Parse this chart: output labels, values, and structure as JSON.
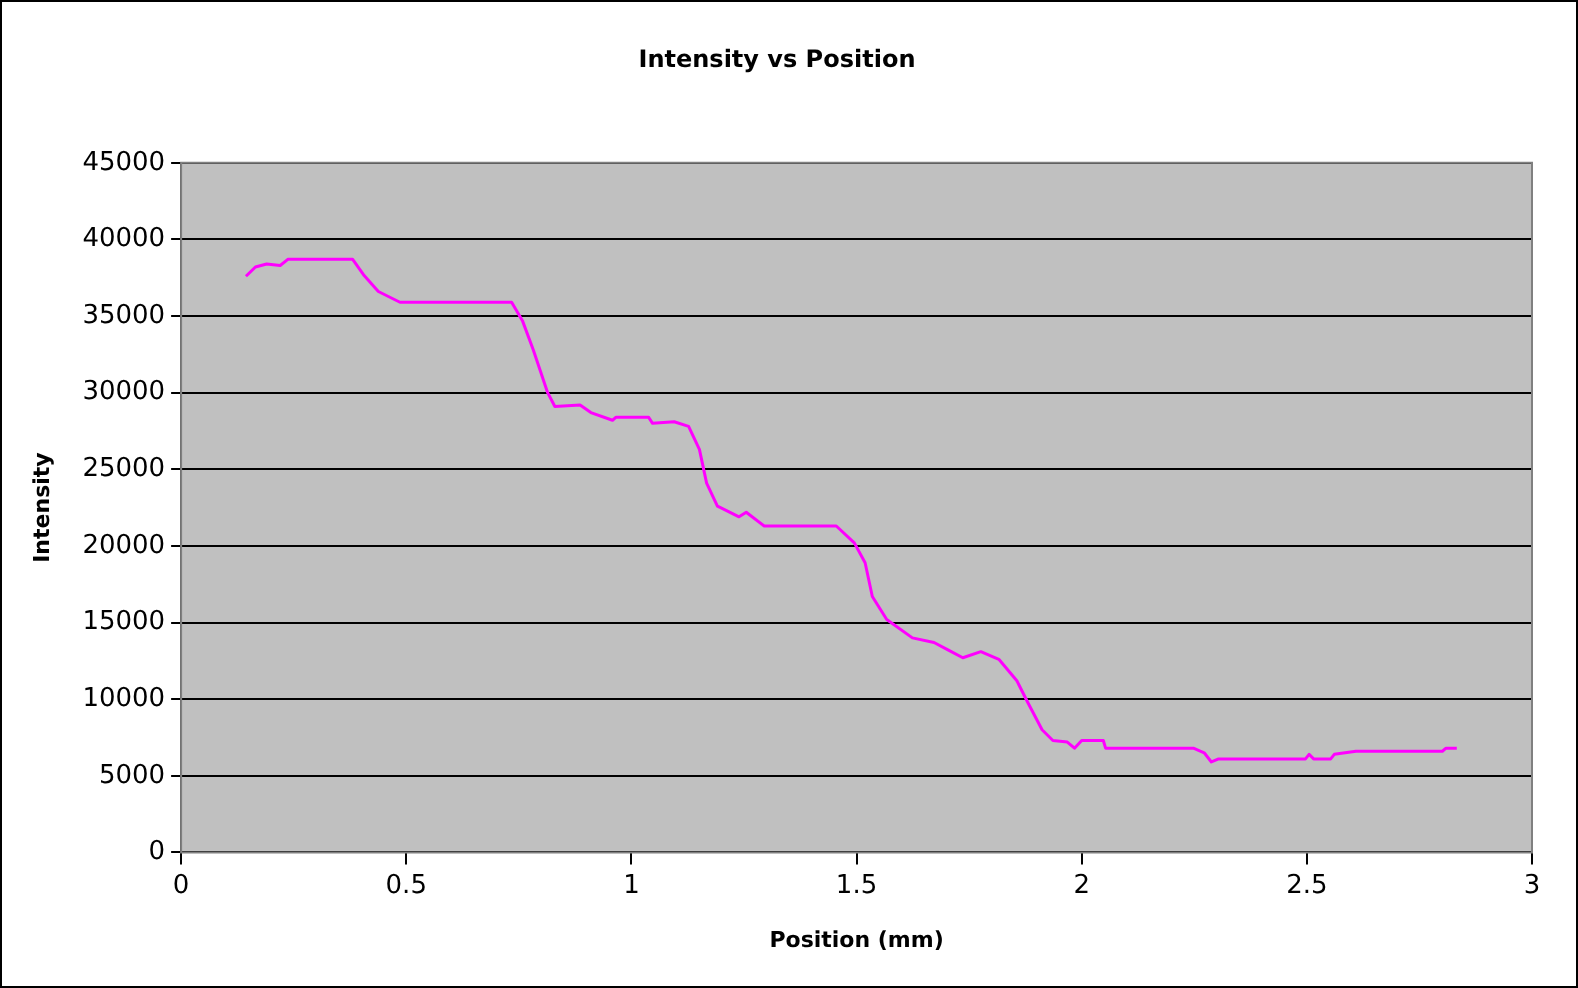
{
  "chart_data": {
    "type": "line",
    "title": "Intensity vs Position",
    "xlabel": "Position (mm)",
    "ylabel": "Intensity",
    "x": [
      0.144,
      0.165,
      0.19,
      0.22,
      0.237,
      0.381,
      0.405,
      0.438,
      0.486,
      0.734,
      0.758,
      0.782,
      0.814,
      0.83,
      0.886,
      0.91,
      0.958,
      0.966,
      1.038,
      1.047,
      1.095,
      1.127,
      1.151,
      1.167,
      1.191,
      1.239,
      1.255,
      1.295,
      1.455,
      1.495,
      1.519,
      1.535,
      1.567,
      1.624,
      1.672,
      1.704,
      1.736,
      1.776,
      1.816,
      1.856,
      1.88,
      1.912,
      1.936,
      1.968,
      1.984,
      2.0,
      2.048,
      2.053,
      2.248,
      2.272,
      2.288,
      2.304,
      2.497,
      2.505,
      2.515,
      2.553,
      2.561,
      2.609,
      2.801,
      2.809,
      2.833
    ],
    "series": [
      {
        "color": "#ff00ff",
        "values": [
          37600,
          38200,
          38400,
          38300,
          38700,
          38700,
          37700,
          36600,
          35900,
          35900,
          34700,
          32800,
          30000,
          29100,
          29200,
          28700,
          28200,
          28400,
          28400,
          28000,
          28100,
          27800,
          26300,
          24100,
          22600,
          21900,
          22200,
          21300,
          21300,
          20200,
          18900,
          16700,
          15200,
          14000,
          13700,
          13200,
          12700,
          13100,
          12600,
          11200,
          9800,
          8000,
          7300,
          7200,
          6800,
          7300,
          7300,
          6800,
          6800,
          6500,
          5900,
          6100,
          6100,
          6400,
          6100,
          6100,
          6400,
          6600,
          6600,
          6800,
          6800
        ]
      }
    ],
    "xlim": [
      0,
      3
    ],
    "xticks": [
      0,
      0.5,
      1,
      1.5,
      2,
      2.5,
      3
    ],
    "ylim": [
      0,
      45000
    ],
    "yticks": [
      0,
      5000,
      10000,
      15000,
      20000,
      25000,
      30000,
      35000,
      40000,
      45000
    ],
    "grid": "y",
    "legend": false,
    "marker": "none",
    "line_style": "solid"
  }
}
